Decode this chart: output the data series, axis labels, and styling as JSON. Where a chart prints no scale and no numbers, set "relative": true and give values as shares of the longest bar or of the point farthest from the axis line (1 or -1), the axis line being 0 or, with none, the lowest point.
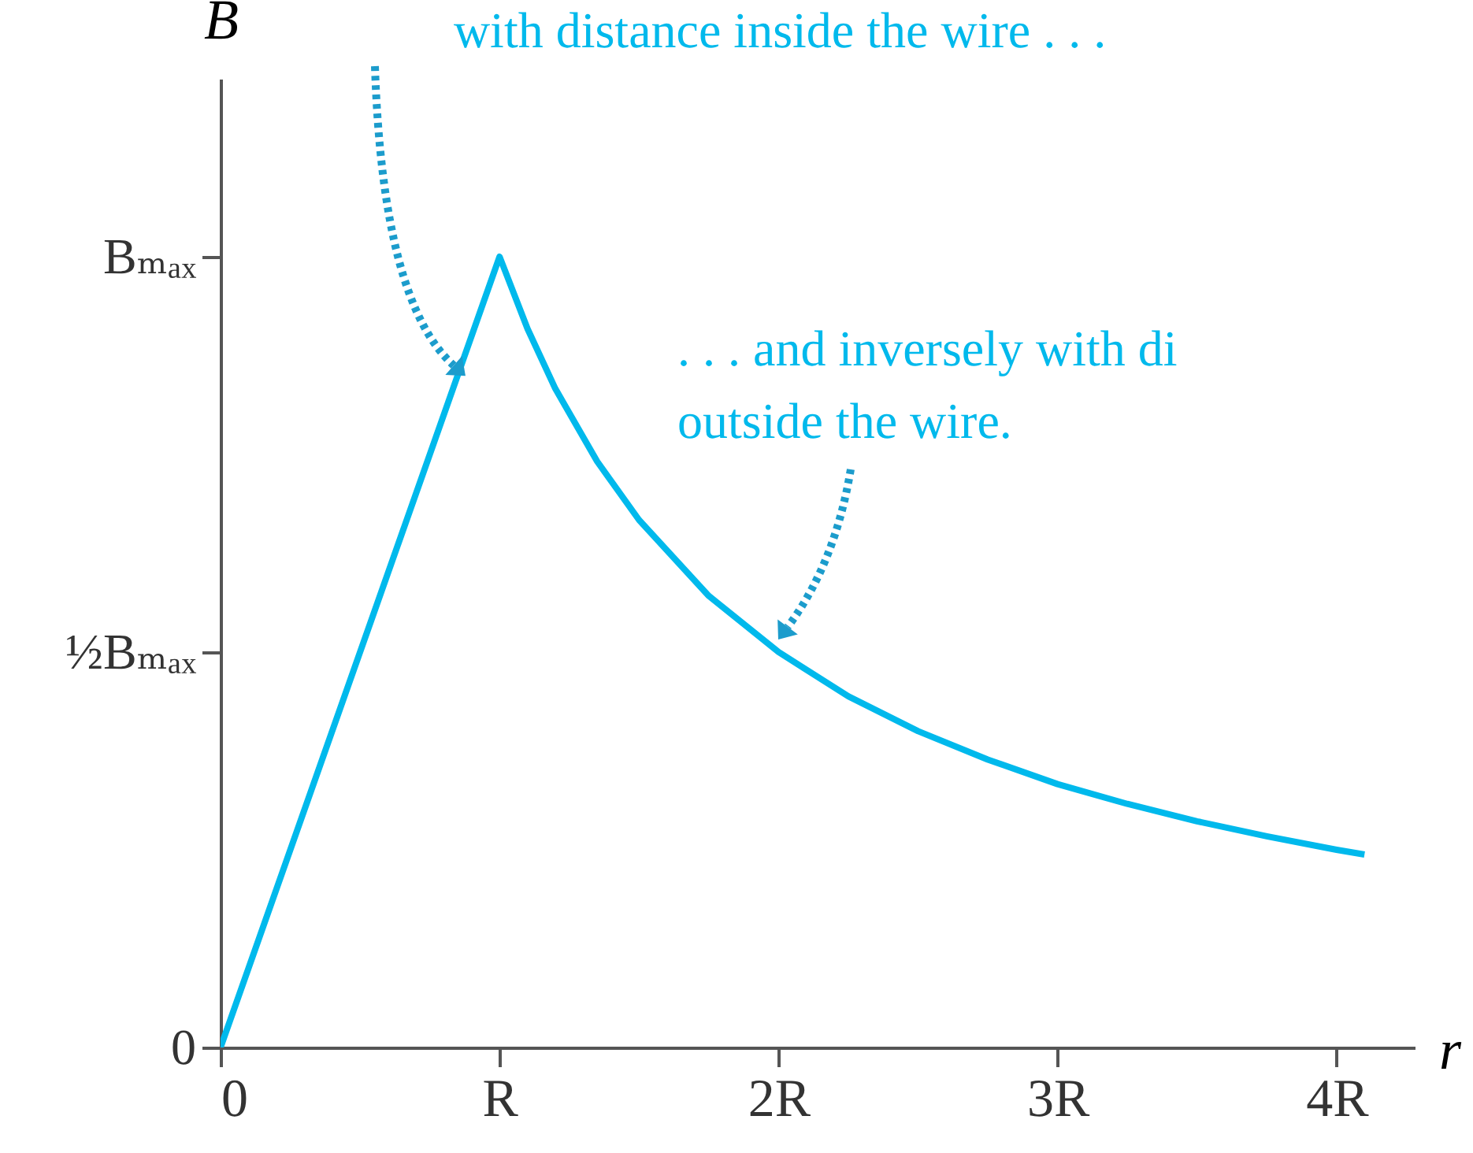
{
  "chart_data": {
    "type": "line",
    "xlabel": "r",
    "ylabel": "B",
    "relative": true,
    "x": [
      0,
      1,
      1.1,
      1.2,
      1.35,
      1.5,
      1.75,
      2,
      2.25,
      2.5,
      2.75,
      3,
      3.25,
      3.5,
      3.75,
      4,
      4.1
    ],
    "series": [
      {
        "color": "#00b9ec",
        "values": [
          0,
          1,
          0.909,
          0.833,
          0.741,
          0.667,
          0.571,
          0.5,
          0.444,
          0.4,
          0.364,
          0.333,
          0.308,
          0.286,
          0.267,
          0.25,
          0.244
        ]
      }
    ],
    "xlim": [
      0,
      4.28
    ],
    "xticks": [
      0,
      {
        "value": 1,
        "label": "R"
      },
      {
        "value": 2,
        "label": "2R"
      },
      {
        "value": 3,
        "label": "3R"
      },
      {
        "value": 4,
        "label": "4R"
      }
    ],
    "annotations": [
      "with distance inside the wire . . .",
      ". . . and inversely with di\noutside the wire.",
      "0",
      "½Bₘₐₓ",
      "Bₘₐₓ"
    ],
    "grid": false,
    "marker": "none",
    "line_style": "solid"
  }
}
